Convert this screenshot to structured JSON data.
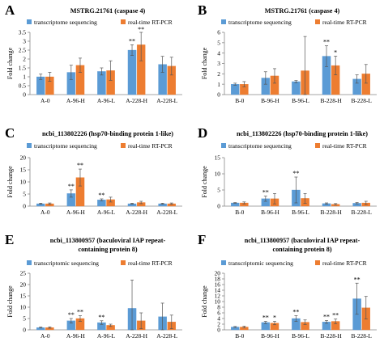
{
  "chart_data": [
    {
      "type": "bar",
      "panel": "A",
      "title": "MSTRG.21761 (caspase 4)",
      "ylabel": "Fold change",
      "categories": [
        "A-0",
        "A-96-H",
        "A-96-L",
        "A-228-H",
        "A-228-L"
      ],
      "ylim": [
        0,
        3.5
      ],
      "yticks": [
        0,
        0.5,
        1,
        1.5,
        2,
        2.5,
        3,
        3.5
      ],
      "series": [
        {
          "name": "transcriptome sequencing",
          "color": "#5b9bd5",
          "values": [
            1.0,
            1.25,
            1.3,
            2.5,
            1.7
          ],
          "errors": [
            0.15,
            0.4,
            0.2,
            0.3,
            0.45
          ],
          "sig": [
            "",
            "",
            "",
            "**",
            ""
          ]
        },
        {
          "name": "real-time RT-PCR",
          "color": "#ed7d31",
          "values": [
            1.0,
            1.65,
            1.35,
            2.8,
            1.6
          ],
          "errors": [
            0.25,
            0.4,
            0.55,
            0.9,
            0.5
          ],
          "sig": [
            "",
            "",
            "",
            "**",
            ""
          ]
        }
      ]
    },
    {
      "type": "bar",
      "panel": "B",
      "title": "MSTRG.21761 (caspase 4)",
      "ylabel": "Fold change",
      "categories": [
        "B-0",
        "B-96-H",
        "B-96-L",
        "B-228-H",
        "B-228-L"
      ],
      "ylim": [
        0,
        6
      ],
      "yticks": [
        0,
        1,
        2,
        3,
        4,
        5,
        6
      ],
      "series": [
        {
          "name": "transcriptome sequencing",
          "color": "#5b9bd5",
          "values": [
            1.0,
            1.6,
            1.25,
            3.7,
            1.5
          ],
          "errors": [
            0.1,
            0.6,
            0.1,
            1.0,
            0.4
          ],
          "sig": [
            "",
            "",
            "",
            "**",
            ""
          ]
        },
        {
          "name": "real-time RT-PCR",
          "color": "#ed7d31",
          "values": [
            1.0,
            1.8,
            2.3,
            2.8,
            2.0
          ],
          "errors": [
            0.25,
            0.7,
            3.3,
            0.9,
            0.9
          ],
          "sig": [
            "",
            "",
            "",
            "*",
            ""
          ]
        }
      ]
    },
    {
      "type": "bar",
      "panel": "C",
      "title": "ncbi_113802226 (hsp70-binding protein 1-like)",
      "ylabel": "Fold change",
      "categories": [
        "A-0",
        "A-96-H",
        "A-96-L",
        "A-228-H",
        "A-228-L"
      ],
      "ylim": [
        0,
        20
      ],
      "yticks": [
        0,
        5,
        10,
        15,
        20
      ],
      "series": [
        {
          "name": "transcriptome sequencing",
          "color": "#5b9bd5",
          "values": [
            1.0,
            5.2,
            2.6,
            1.0,
            1.0
          ],
          "errors": [
            0.2,
            1.5,
            0.4,
            0.2,
            0.2
          ],
          "sig": [
            "",
            "**",
            "**",
            "",
            ""
          ]
        },
        {
          "name": "real-time RT-PCR",
          "color": "#ed7d31",
          "values": [
            1.0,
            11.8,
            2.7,
            1.5,
            1.0
          ],
          "errors": [
            0.3,
            3.5,
            1.0,
            0.5,
            0.3
          ],
          "sig": [
            "",
            "**",
            "",
            "",
            ""
          ]
        }
      ]
    },
    {
      "type": "bar",
      "panel": "D",
      "title": "ncbi_113802226 (hsp70-binding protein 1-like)",
      "ylabel": "Fold change",
      "categories": [
        "B-0",
        "B-96-H",
        "B-96-L",
        "B-228-H",
        "B-228-L"
      ],
      "ylim": [
        0,
        15
      ],
      "yticks": [
        0,
        5,
        10,
        15
      ],
      "series": [
        {
          "name": "transcriptome sequencing",
          "color": "#5b9bd5",
          "values": [
            1.0,
            2.3,
            5.0,
            0.8,
            0.9
          ],
          "errors": [
            0.1,
            0.8,
            4.0,
            0.2,
            0.2
          ],
          "sig": [
            "",
            "**",
            "**",
            "",
            ""
          ]
        },
        {
          "name": "real-time RT-PCR",
          "color": "#ed7d31",
          "values": [
            1.0,
            2.3,
            2.4,
            0.6,
            1.0
          ],
          "errors": [
            0.3,
            1.6,
            1.5,
            0.2,
            0.5
          ],
          "sig": [
            "",
            "",
            "",
            "",
            ""
          ]
        }
      ]
    },
    {
      "type": "bar",
      "panel": "E",
      "title": "ncbi_113800957 (baculoviral IAP repeat-containing protein 8)",
      "ylabel": "Fold change",
      "categories": [
        "A-0",
        "A-96-H",
        "A-96-L",
        "A-228-H",
        "A-228-L"
      ],
      "ylim": [
        0,
        25
      ],
      "yticks": [
        0,
        5,
        10,
        15,
        20,
        25
      ],
      "series": [
        {
          "name": "transcriptomic sequencing",
          "color": "#5b9bd5",
          "values": [
            1.0,
            4.0,
            3.2,
            9.5,
            5.8
          ],
          "errors": [
            0.2,
            1.0,
            0.8,
            12.5,
            6.0
          ],
          "sig": [
            "",
            "**",
            "**",
            "",
            ""
          ]
        },
        {
          "name": "real-time RT-PCR",
          "color": "#ed7d31",
          "values": [
            1.0,
            5.0,
            2.0,
            4.0,
            3.5
          ],
          "errors": [
            0.3,
            1.2,
            0.5,
            3.5,
            3.0
          ],
          "sig": [
            "",
            "**",
            "",
            "",
            ""
          ]
        }
      ]
    },
    {
      "type": "bar",
      "panel": "F",
      "title": "ncbi_113800957 (baculoviral IAP repeat-containing protein 8)",
      "ylabel": "Fold change",
      "categories": [
        "B-0",
        "B-96-H",
        "B-96-L",
        "B-228-H",
        "B-228-L"
      ],
      "ylim": [
        0,
        20
      ],
      "yticks": [
        0,
        2,
        4,
        6,
        8,
        10,
        12,
        14,
        16,
        18,
        20
      ],
      "series": [
        {
          "name": "transcriptomic sequencing",
          "color": "#5b9bd5",
          "values": [
            1.0,
            2.6,
            4.0,
            2.8,
            11.0
          ],
          "errors": [
            0.2,
            0.4,
            1.0,
            0.5,
            5.5
          ],
          "sig": [
            "",
            "**",
            "**",
            "**",
            "**"
          ]
        },
        {
          "name": "real-time RT-PCR",
          "color": "#ed7d31",
          "values": [
            1.0,
            2.4,
            2.7,
            3.0,
            7.8
          ],
          "errors": [
            0.3,
            0.6,
            0.8,
            0.8,
            4.0
          ],
          "sig": [
            "",
            "*",
            "",
            "**",
            ""
          ]
        }
      ]
    }
  ]
}
